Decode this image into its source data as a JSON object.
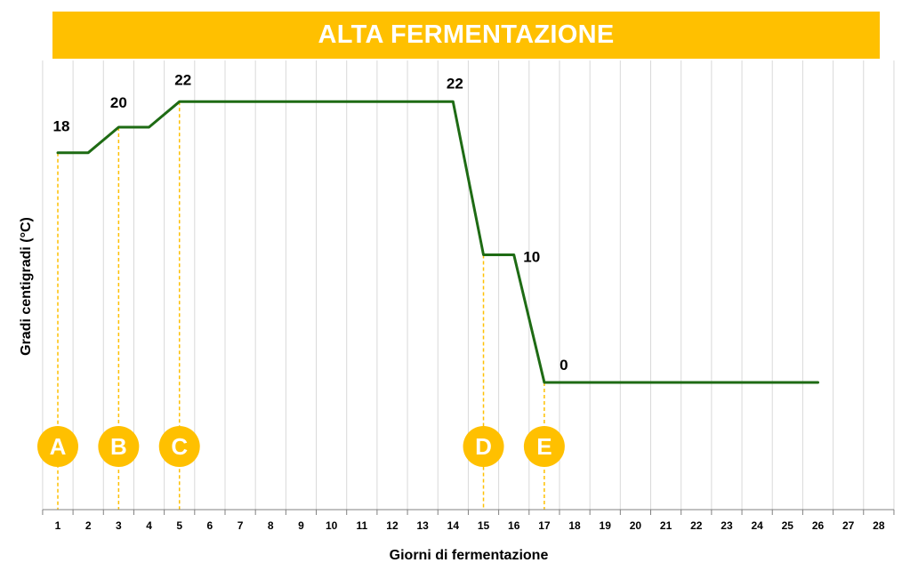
{
  "chart_data": {
    "type": "line",
    "title": "ALTA FERMENTAZIONE",
    "xlabel": "Giorni di fermentazione",
    "ylabel": "Gradi centigradi (°C)",
    "x_ticks": [
      1,
      2,
      3,
      4,
      5,
      6,
      7,
      8,
      9,
      10,
      11,
      12,
      13,
      14,
      15,
      16,
      17,
      18,
      19,
      20,
      21,
      22,
      23,
      24,
      25,
      26,
      27,
      28
    ],
    "xlim": [
      1,
      28
    ],
    "ylim": [
      -10,
      24
    ],
    "grid": "vertical",
    "legend": "none",
    "series": [
      {
        "color": "#1E6B14",
        "x": [
          1,
          2,
          3,
          4,
          5,
          14,
          15,
          16,
          17,
          26
        ],
        "y": [
          18,
          18,
          20,
          20,
          22,
          22,
          10,
          10,
          0,
          0
        ]
      }
    ],
    "data_labels": [
      {
        "x": 1,
        "y": 18,
        "text": "18"
      },
      {
        "x": 3,
        "y": 20,
        "text": "20"
      },
      {
        "x": 5,
        "y": 22,
        "text": "22"
      },
      {
        "x": 14,
        "y": 22,
        "text": "22"
      },
      {
        "x": 16,
        "y": 10,
        "text": "10"
      },
      {
        "x": 17,
        "y": 0,
        "text": "0"
      }
    ],
    "markers": [
      {
        "x": 1,
        "label": "A"
      },
      {
        "x": 3,
        "label": "B"
      },
      {
        "x": 5,
        "label": "C"
      },
      {
        "x": 15,
        "label": "D"
      },
      {
        "x": 17,
        "label": "E"
      }
    ],
    "colors": {
      "accent": "#FFC000",
      "line": "#1E6B14",
      "grid": "#D9D9D9"
    }
  }
}
